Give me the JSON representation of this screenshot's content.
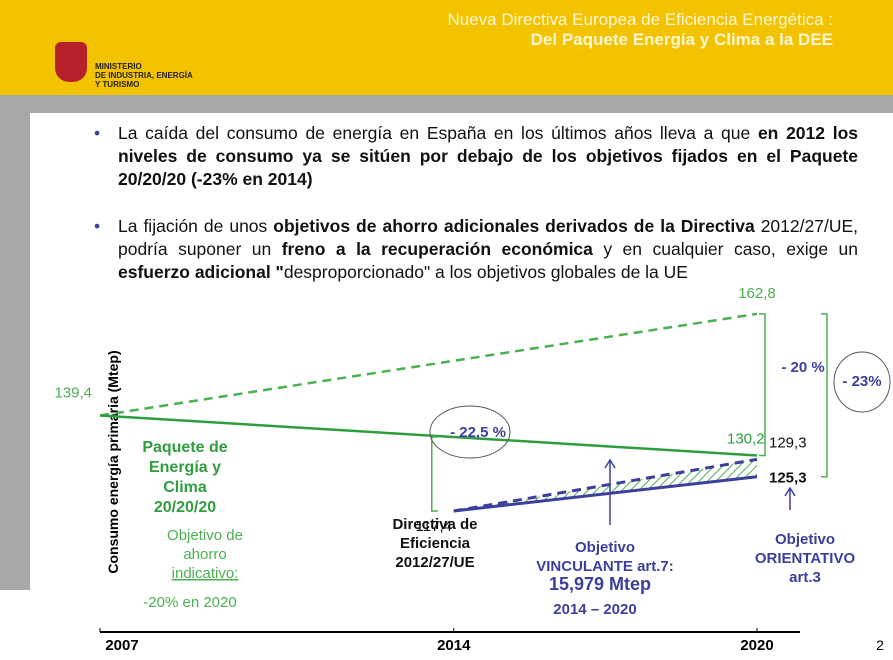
{
  "header": {
    "title": [
      "Nueva Directiva Europea de Eficiencia Energética :",
      "Del Paquete Energía y Clima a la DEE"
    ],
    "logo": [
      "MINISTERIO",
      "DE INDUSTRIA, ENERGÍA",
      "Y TURISMO"
    ]
  },
  "bullets": [
    {
      "segments": [
        {
          "text": "La caída del consumo de energía en España en los últimos años lleva a que ",
          "bold": false
        },
        {
          "text": "en 2012 los niveles de consumo ya se sitúen por debajo de los objetivos fijados en el Paquete 20/20/20 (-23% en 2014)",
          "bold": true
        }
      ]
    },
    {
      "segments": [
        {
          "text": "La fijación de unos ",
          "bold": false
        },
        {
          "text": "objetivos de ahorro adicionales derivados de la Directiva",
          "bold": true
        },
        {
          "text": " 2012/27/UE, podría suponer un ",
          "bold": false
        },
        {
          "text": "freno a la recuperación económica",
          "bold": true
        },
        {
          "text": " y en cualquier caso, exige un ",
          "bold": false
        },
        {
          "text": "esfuerzo adicional \"",
          "bold": true
        },
        {
          "text": "desproporcionado\" a los objetivos globales de la UE",
          "bold": false
        }
      ]
    }
  ],
  "page_number": "2",
  "chart_data": {
    "type": "line",
    "y_label": "Consumo energía primaria (Mtep)",
    "xlim": [
      2007,
      2020
    ],
    "xticks": [
      2007,
      2014,
      2020
    ],
    "ylim": [
      90,
      166
    ],
    "series": [
      {
        "color": "#4caf50",
        "dash": true,
        "x": [
          2007,
          2020
        ],
        "values": [
          139.4,
          162.8
        ],
        "value_labels": [
          "139,4",
          "162,8"
        ]
      },
      {
        "color": "#2e9e3e",
        "dash": false,
        "x": [
          2007,
          2020
        ],
        "values": [
          139.4,
          130.2
        ],
        "value_labels": [
          null,
          "130,2"
        ]
      },
      {
        "color": "#3c3f9c",
        "dash": false,
        "x": [
          2014,
          2020
        ],
        "values": [
          117.4,
          125.3
        ],
        "value_labels": [
          "117,4",
          "125,3"
        ]
      },
      {
        "color": "#3c3f9c",
        "dash": true,
        "x": [
          2014,
          2020
        ],
        "values": [
          117.4,
          129.3
        ],
        "value_labels": [
          null,
          "129,3"
        ]
      }
    ],
    "annotations": [
      {
        "lines": [
          "Paquete de",
          "Energía y",
          "Clima",
          "20/20/20"
        ],
        "color": "#2e9e3e",
        "bold": true
      },
      {
        "lines": [
          "Objetivo de",
          "ahorro",
          "indicativo:"
        ],
        "color": "#4caf50",
        "bold": false
      },
      {
        "lines": [
          "-20% en 2020"
        ],
        "color": "#4caf50",
        "bold": false
      },
      {
        "lines": [
          "Directiva de",
          "Eficiencia",
          "2012/27/UE"
        ],
        "color": "#111",
        "bold": true
      },
      {
        "lines": [
          "Objetivo",
          "VINCULANTE art.7:"
        ],
        "color": "#3c3f9c",
        "bold": true
      },
      {
        "lines": [
          "15,979 Mtep"
        ],
        "color": "#3c3f9c",
        "bold": true
      },
      {
        "lines": [
          "2014 – 2020"
        ],
        "color": "#3c3f9c",
        "bold": true
      },
      {
        "lines": [
          "Objetivo",
          "ORIENTATIVO",
          "art.3"
        ],
        "color": "#3c3f9c",
        "bold": true
      },
      {
        "lines": [
          "- 22,5 %"
        ],
        "color": "#3c3f9c",
        "bold": true
      },
      {
        "lines": [
          "- 20 %"
        ],
        "color": "#3c3f9c",
        "bold": true
      },
      {
        "lines": [
          "- 23%"
        ],
        "color": "#3c3f9c",
        "bold": true
      }
    ]
  }
}
